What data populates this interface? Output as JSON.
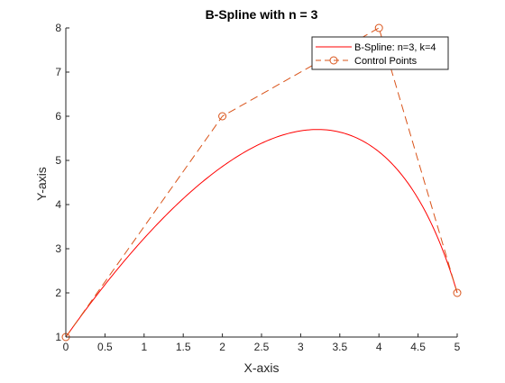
{
  "chart_data": {
    "type": "line",
    "title": "B-Spline with n = 3",
    "xlabel": "X-axis",
    "ylabel": "Y-axis",
    "xlim": [
      0,
      5
    ],
    "ylim": [
      1,
      8
    ],
    "xticks": [
      0,
      0.5,
      1,
      1.5,
      2,
      2.5,
      3,
      3.5,
      4,
      4.5,
      5
    ],
    "xtick_labels": [
      "0",
      "0.5",
      "1",
      "1.5",
      "2",
      "2.5",
      "3",
      "3.5",
      "4",
      "4.5",
      "5"
    ],
    "yticks": [
      1,
      2,
      3,
      4,
      5,
      6,
      7,
      8
    ],
    "ytick_labels": [
      "1",
      "2",
      "3",
      "4",
      "5",
      "6",
      "7",
      "8"
    ],
    "grid": false,
    "legend_position": "top-right",
    "series": [
      {
        "name": "B-Spline: n=3, k=4",
        "style": "solid",
        "marker": "none",
        "color": "#ff0000",
        "control_points": {
          "x": [
            0,
            2,
            4,
            5
          ],
          "y": [
            1,
            6,
            8,
            2
          ]
        }
      },
      {
        "name": "Control Points",
        "style": "dashed",
        "marker": "circle",
        "color": "#d95319",
        "x": [
          0,
          2,
          4,
          5
        ],
        "y": [
          1,
          6,
          8,
          2
        ]
      }
    ]
  }
}
